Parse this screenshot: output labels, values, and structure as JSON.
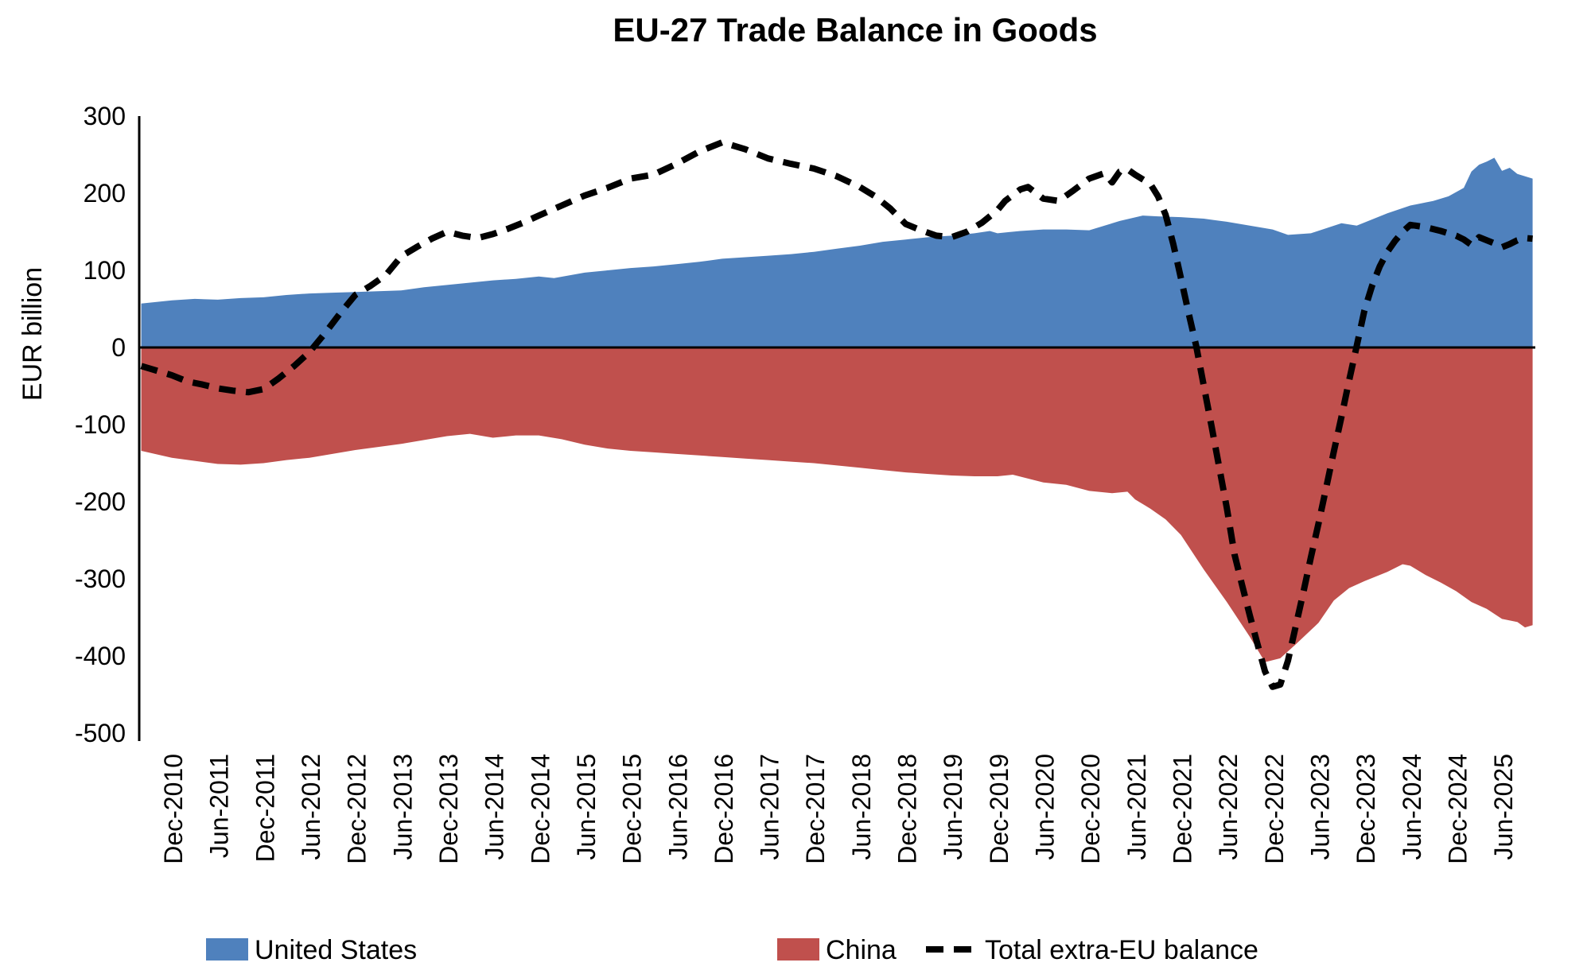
{
  "chart": {
    "title": "EU-27 Trade Balance in Goods",
    "ylabel": "EUR billion"
  },
  "legend": {
    "us": "United States",
    "china": "China",
    "total": "Total extra-EU balance"
  },
  "chart_data": {
    "type": "combo",
    "title": "EU-27 Trade Balance in Goods",
    "ylabel": "EUR billion",
    "grid": false,
    "legend_position": "bottom",
    "x_axis": {
      "unit": "months_from_Dec-2010",
      "first_data_month": -4,
      "last_data_month": 178,
      "tick_interval_months": 6,
      "tick_labels": [
        "Dec-2010",
        "Jun-2011",
        "Dec-2011",
        "Jun-2012",
        "Dec-2012",
        "Jun-2013",
        "Dec-2013",
        "Jun-2014",
        "Dec-2014",
        "Jun-2015",
        "Dec-2015",
        "Jun-2016",
        "Dec-2016",
        "Jun-2017",
        "Dec-2017",
        "Jun-2018",
        "Dec-2018",
        "Jun-2019",
        "Dec-2019",
        "Jun-2020",
        "Dec-2020",
        "Jun-2021",
        "Dec-2021",
        "Jun-2022",
        "Dec-2022",
        "Jun-2023",
        "Dec-2023",
        "Jun-2024",
        "Dec-2024",
        "Jun-2025"
      ]
    },
    "y_axis": {
      "label": "EUR billion",
      "min": -500,
      "max": 300,
      "tick_step": 100,
      "ticks": [
        300,
        200,
        100,
        0,
        -100,
        -200,
        -300,
        -400,
        -500
      ]
    },
    "series": [
      {
        "name": "United States",
        "type": "area",
        "color": "#4F81BD",
        "points": [
          [
            -4,
            57
          ],
          [
            0,
            61
          ],
          [
            3,
            63
          ],
          [
            6,
            62
          ],
          [
            9,
            64
          ],
          [
            12,
            65
          ],
          [
            15,
            68
          ],
          [
            18,
            70
          ],
          [
            21,
            71
          ],
          [
            24,
            72
          ],
          [
            27,
            73
          ],
          [
            30,
            74
          ],
          [
            33,
            78
          ],
          [
            36,
            81
          ],
          [
            39,
            84
          ],
          [
            42,
            87
          ],
          [
            45,
            89
          ],
          [
            48,
            92
          ],
          [
            50,
            90
          ],
          [
            54,
            97
          ],
          [
            57,
            100
          ],
          [
            60,
            103
          ],
          [
            63,
            105
          ],
          [
            66,
            108
          ],
          [
            69,
            111
          ],
          [
            72,
            115
          ],
          [
            75,
            117
          ],
          [
            78,
            119
          ],
          [
            81,
            121
          ],
          [
            84,
            124
          ],
          [
            87,
            128
          ],
          [
            90,
            132
          ],
          [
            93,
            137
          ],
          [
            96,
            140
          ],
          [
            99,
            143
          ],
          [
            102,
            145
          ],
          [
            105,
            148
          ],
          [
            107,
            151
          ],
          [
            108,
            148
          ],
          [
            111,
            151
          ],
          [
            114,
            153
          ],
          [
            117,
            153
          ],
          [
            120,
            152
          ],
          [
            124,
            164
          ],
          [
            127,
            171
          ],
          [
            129,
            170
          ],
          [
            132,
            169
          ],
          [
            135,
            167
          ],
          [
            138,
            163
          ],
          [
            141,
            158
          ],
          [
            144,
            153
          ],
          [
            146,
            146
          ],
          [
            149,
            148
          ],
          [
            153,
            161
          ],
          [
            155,
            158
          ],
          [
            159,
            174
          ],
          [
            162,
            184
          ],
          [
            165,
            190
          ],
          [
            167,
            196
          ],
          [
            169,
            207
          ],
          [
            170,
            228
          ],
          [
            171,
            237
          ],
          [
            172,
            241
          ],
          [
            173,
            246
          ],
          [
            174,
            229
          ],
          [
            175,
            233
          ],
          [
            176,
            225
          ],
          [
            178,
            219
          ]
        ]
      },
      {
        "name": "China",
        "type": "area",
        "color": "#C0504D",
        "points": [
          [
            -4,
            -134
          ],
          [
            0,
            -143
          ],
          [
            3,
            -147
          ],
          [
            6,
            -151
          ],
          [
            9,
            -152
          ],
          [
            12,
            -150
          ],
          [
            15,
            -146
          ],
          [
            18,
            -143
          ],
          [
            21,
            -138
          ],
          [
            24,
            -133
          ],
          [
            27,
            -129
          ],
          [
            30,
            -125
          ],
          [
            33,
            -120
          ],
          [
            36,
            -115
          ],
          [
            39,
            -112
          ],
          [
            42,
            -117
          ],
          [
            45,
            -114
          ],
          [
            48,
            -114
          ],
          [
            51,
            -119
          ],
          [
            54,
            -126
          ],
          [
            57,
            -131
          ],
          [
            60,
            -134
          ],
          [
            63,
            -136
          ],
          [
            66,
            -138
          ],
          [
            69,
            -140
          ],
          [
            72,
            -142
          ],
          [
            75,
            -144
          ],
          [
            78,
            -146
          ],
          [
            81,
            -148
          ],
          [
            84,
            -150
          ],
          [
            87,
            -153
          ],
          [
            90,
            -156
          ],
          [
            93,
            -159
          ],
          [
            96,
            -162
          ],
          [
            99,
            -164
          ],
          [
            102,
            -166
          ],
          [
            105,
            -167
          ],
          [
            108,
            -167
          ],
          [
            110,
            -165
          ],
          [
            114,
            -175
          ],
          [
            117,
            -178
          ],
          [
            120,
            -186
          ],
          [
            123,
            -189
          ],
          [
            125,
            -187
          ],
          [
            126,
            -197
          ],
          [
            128,
            -209
          ],
          [
            130,
            -223
          ],
          [
            132,
            -243
          ],
          [
            135,
            -288
          ],
          [
            138,
            -330
          ],
          [
            141,
            -375
          ],
          [
            143,
            -408
          ],
          [
            145,
            -403
          ],
          [
            147,
            -385
          ],
          [
            150,
            -357
          ],
          [
            152,
            -328
          ],
          [
            154,
            -312
          ],
          [
            156,
            -303
          ],
          [
            159,
            -291
          ],
          [
            161,
            -281
          ],
          [
            162,
            -283
          ],
          [
            164,
            -295
          ],
          [
            166,
            -305
          ],
          [
            168,
            -316
          ],
          [
            170,
            -330
          ],
          [
            172,
            -339
          ],
          [
            174,
            -352
          ],
          [
            176,
            -356
          ],
          [
            177,
            -363
          ],
          [
            178,
            -360
          ]
        ]
      },
      {
        "name": "Total extra-EU balance",
        "type": "line",
        "dash": true,
        "color": "#000000",
        "points": [
          [
            -4,
            -24
          ],
          [
            0,
            -36
          ],
          [
            2,
            -44
          ],
          [
            4,
            -48
          ],
          [
            6,
            -53
          ],
          [
            8,
            -56
          ],
          [
            10,
            -58
          ],
          [
            12,
            -54
          ],
          [
            14,
            -40
          ],
          [
            16,
            -24
          ],
          [
            18,
            -6
          ],
          [
            20,
            18
          ],
          [
            22,
            44
          ],
          [
            24,
            68
          ],
          [
            26,
            80
          ],
          [
            28,
            94
          ],
          [
            30,
            118
          ],
          [
            32,
            130
          ],
          [
            34,
            141
          ],
          [
            36,
            150
          ],
          [
            38,
            145
          ],
          [
            40,
            142
          ],
          [
            42,
            147
          ],
          [
            44,
            154
          ],
          [
            46,
            162
          ],
          [
            48,
            171
          ],
          [
            51,
            184
          ],
          [
            54,
            197
          ],
          [
            57,
            207
          ],
          [
            60,
            219
          ],
          [
            63,
            224
          ],
          [
            66,
            238
          ],
          [
            69,
            254
          ],
          [
            72,
            266
          ],
          [
            75,
            257
          ],
          [
            78,
            245
          ],
          [
            81,
            238
          ],
          [
            84,
            232
          ],
          [
            87,
            222
          ],
          [
            90,
            208
          ],
          [
            92,
            196
          ],
          [
            94,
            180
          ],
          [
            96,
            160
          ],
          [
            98,
            152
          ],
          [
            100,
            145
          ],
          [
            102,
            143
          ],
          [
            104,
            150
          ],
          [
            106,
            162
          ],
          [
            108,
            178
          ],
          [
            109,
            190
          ],
          [
            111,
            205
          ],
          [
            112,
            208
          ],
          [
            114,
            193
          ],
          [
            116,
            190
          ],
          [
            118,
            204
          ],
          [
            120,
            219
          ],
          [
            122,
            226
          ],
          [
            123,
            214
          ],
          [
            124,
            228
          ],
          [
            125,
            231
          ],
          [
            126,
            224
          ],
          [
            128,
            212
          ],
          [
            129,
            196
          ],
          [
            130,
            172
          ],
          [
            131,
            134
          ],
          [
            132,
            90
          ],
          [
            133,
            45
          ],
          [
            134,
            2
          ],
          [
            135,
            -50
          ],
          [
            136,
            -102
          ],
          [
            137,
            -155
          ],
          [
            138,
            -208
          ],
          [
            139,
            -268
          ],
          [
            140,
            -308
          ],
          [
            141,
            -347
          ],
          [
            142,
            -384
          ],
          [
            143,
            -420
          ],
          [
            144,
            -440
          ],
          [
            145,
            -437
          ],
          [
            146,
            -406
          ],
          [
            147,
            -362
          ],
          [
            148,
            -318
          ],
          [
            149,
            -272
          ],
          [
            150,
            -228
          ],
          [
            151,
            -182
          ],
          [
            152,
            -135
          ],
          [
            153,
            -90
          ],
          [
            154,
            -43
          ],
          [
            155,
            2
          ],
          [
            156,
            48
          ],
          [
            157,
            80
          ],
          [
            158,
            105
          ],
          [
            159,
            124
          ],
          [
            160,
            138
          ],
          [
            161,
            150
          ],
          [
            162,
            159
          ],
          [
            164,
            156
          ],
          [
            166,
            151
          ],
          [
            168,
            145
          ],
          [
            169,
            140
          ],
          [
            170,
            133
          ],
          [
            171,
            143
          ],
          [
            172,
            139
          ],
          [
            173,
            135
          ],
          [
            174,
            130
          ],
          [
            175,
            134
          ],
          [
            176,
            139
          ],
          [
            177,
            142
          ],
          [
            178,
            141
          ]
        ]
      }
    ]
  }
}
